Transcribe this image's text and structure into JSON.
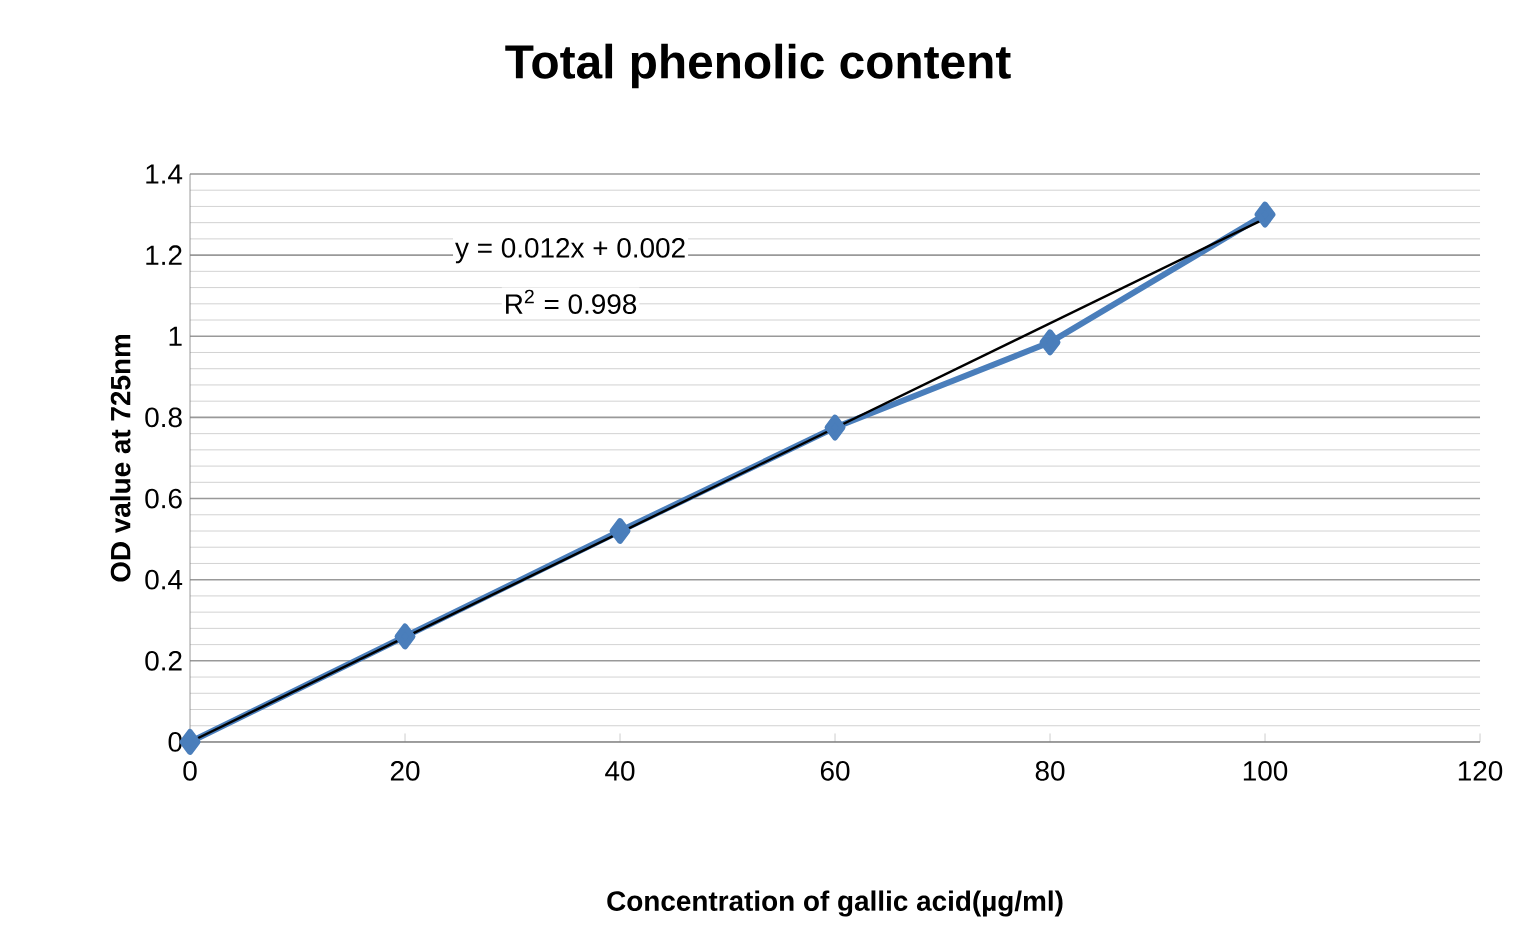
{
  "chart_data": {
    "type": "line",
    "title": "Total phenolic content",
    "xlabel": "Concentration of gallic  acid(µg/ml)",
    "ylabel": "OD value at  725nm",
    "x": [
      0,
      20,
      40,
      60,
      80,
      100
    ],
    "series": [
      {
        "color": "#4a7ebb",
        "values": [
          0,
          0.26,
          0.52,
          0.775,
          0.985,
          1.3
        ],
        "marker": "diamond"
      },
      {
        "type": "line",
        "x": [
          0,
          100
        ],
        "values": [
          0,
          1.29
        ],
        "color": "#000000",
        "marker": "none"
      }
    ],
    "annotations": [
      "y = 0.012x + 0.002",
      "R$^{2}$ = 0.998"
    ],
    "xlim": [
      0,
      120
    ],
    "xticks": [
      0,
      20,
      40,
      60,
      80,
      100,
      120
    ],
    "ylim": [
      0,
      1.4
    ],
    "yticks": [
      0,
      0.2,
      0.4,
      0.6,
      0.8,
      1,
      1.2,
      1.4
    ],
    "grid": "y",
    "line_style": "solid"
  }
}
